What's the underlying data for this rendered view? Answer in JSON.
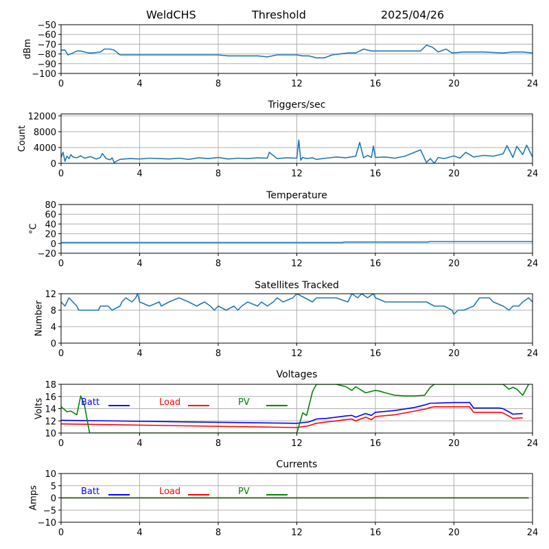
{
  "header": {
    "station": "WeldCHS",
    "mode": "Threshold",
    "date": "2025/04/26"
  },
  "colors": {
    "series_default": "#1f77b4",
    "batt": "#0000ff",
    "load": "#ff0000",
    "pv": "#008000",
    "grid": "#b0b0b0"
  },
  "chart_data": [
    {
      "type": "line",
      "title": "",
      "ylabel": "dBm",
      "xlim": [
        0,
        24
      ],
      "ylim": [
        -100,
        -50
      ],
      "xticks": [
        0,
        4,
        8,
        12,
        16,
        20,
        24
      ],
      "yticks": [
        -100,
        -90,
        -80,
        -70,
        -60,
        -50
      ],
      "grid": true,
      "series": [
        {
          "x": [
            0,
            0.2,
            0.35,
            0.6,
            0.8,
            1.0,
            1.4,
            1.6,
            2.0,
            2.2,
            2.5,
            2.7,
            3.0,
            4.0,
            5.0,
            6.0,
            7.0,
            8.0,
            8.5,
            9.0,
            10.0,
            10.5,
            11.0,
            12.0,
            12.3,
            12.6,
            13.0,
            13.4,
            13.8,
            14.2,
            14.6,
            15.0,
            15.4,
            15.8,
            16.5,
            17.5,
            18.3,
            18.6,
            18.9,
            19.2,
            19.6,
            19.9,
            20.5,
            21.5,
            22.5,
            23.0,
            23.5,
            24.0
          ],
          "values": [
            -76,
            -76,
            -81,
            -79,
            -77,
            -77,
            -79,
            -79,
            -78,
            -75,
            -75,
            -76,
            -81,
            -81,
            -81,
            -81,
            -81,
            -81,
            -82,
            -82,
            -82,
            -83,
            -81,
            -81,
            -82,
            -82,
            -84,
            -84,
            -81,
            -80,
            -79,
            -79,
            -75,
            -77,
            -77,
            -77,
            -77,
            -71,
            -73,
            -78,
            -75,
            -79,
            -78,
            -78,
            -79,
            -78,
            -78,
            -79
          ]
        }
      ]
    },
    {
      "type": "line",
      "title": "Triggers/sec",
      "ylabel": "Count",
      "xlim": [
        0,
        24
      ],
      "ylim": [
        0,
        12500
      ],
      "xticks": [
        0,
        4,
        8,
        12,
        16,
        20,
        24
      ],
      "yticks": [
        0,
        4000,
        8000,
        12000
      ],
      "grid": true,
      "series": [
        {
          "x": [
            0,
            0.1,
            0.2,
            0.3,
            0.4,
            0.5,
            0.6,
            0.8,
            1.0,
            1.2,
            1.5,
            1.8,
            2.0,
            2.1,
            2.3,
            2.5,
            2.6,
            2.7,
            3.0,
            3.5,
            4.0,
            4.5,
            5.0,
            5.5,
            6.0,
            6.5,
            7.0,
            7.5,
            8.0,
            8.5,
            9.0,
            9.5,
            10.0,
            10.5,
            10.6,
            11.0,
            11.5,
            12.0,
            12.1,
            12.2,
            12.3,
            12.5,
            12.8,
            13.0,
            13.5,
            14.0,
            14.5,
            15.0,
            15.2,
            15.4,
            15.6,
            15.8,
            15.9,
            16.0,
            16.5,
            17.0,
            17.5,
            18.3,
            18.6,
            18.8,
            19.0,
            19.2,
            19.5,
            20.0,
            20.3,
            20.6,
            21.0,
            21.5,
            22.0,
            22.5,
            22.7,
            23.0,
            23.2,
            23.5,
            23.7,
            24.0
          ],
          "values": [
            1500,
            2800,
            500,
            1800,
            1200,
            2200,
            1600,
            1400,
            1900,
            1300,
            1700,
            1100,
            1500,
            2500,
            1200,
            900,
            1400,
            200,
            1000,
            1200,
            1100,
            1300,
            1200,
            1100,
            1300,
            1000,
            1400,
            1200,
            1500,
            1100,
            1300,
            1200,
            1400,
            1300,
            2800,
            1200,
            1400,
            1300,
            5900,
            800,
            1500,
            1200,
            1400,
            1000,
            1300,
            1600,
            1400,
            1800,
            5300,
            1400,
            2000,
            1500,
            4400,
            1500,
            1600,
            1300,
            1800,
            3400,
            200,
            1200,
            0,
            1500,
            1200,
            1900,
            1300,
            2800,
            1600,
            2000,
            1800,
            2400,
            4500,
            1500,
            4300,
            2200,
            4600,
            1600
          ]
        }
      ]
    },
    {
      "type": "line",
      "title": "Temperature",
      "ylabel": "°C",
      "xlim": [
        0,
        24
      ],
      "ylim": [
        -20,
        80
      ],
      "xticks": [
        0,
        4,
        8,
        12,
        16,
        20,
        24
      ],
      "yticks": [
        -20,
        0,
        20,
        40,
        60,
        80
      ],
      "grid": true,
      "series": [
        {
          "x": [
            0,
            14.35,
            14.4,
            18.7,
            18.75,
            24.0
          ],
          "values": [
            2,
            2,
            3,
            3,
            4,
            4
          ]
        }
      ]
    },
    {
      "type": "line",
      "title": "Satellites Tracked",
      "ylabel": "Number",
      "xlim": [
        0,
        24
      ],
      "ylim": [
        0,
        12
      ],
      "xticks": [
        0,
        4,
        8,
        12,
        16,
        20,
        24
      ],
      "yticks": [
        0,
        4,
        8,
        12
      ],
      "grid": true,
      "series": [
        {
          "x": [
            0,
            0.2,
            0.4,
            0.6,
            0.8,
            0.9,
            1.5,
            1.9,
            2.0,
            2.4,
            2.6,
            3.0,
            3.1,
            3.3,
            3.6,
            3.8,
            3.9,
            4.0,
            4.5,
            5.0,
            5.1,
            5.5,
            6.0,
            6.5,
            6.9,
            7.3,
            7.6,
            7.8,
            8.0,
            8.4,
            8.8,
            9.0,
            9.2,
            9.5,
            10.0,
            10.2,
            10.5,
            10.8,
            11.0,
            11.3,
            11.8,
            12.0,
            12.4,
            12.8,
            13.0,
            13.5,
            14.0,
            14.6,
            14.8,
            15.1,
            15.3,
            15.6,
            15.9,
            16.0,
            16.5,
            17.0,
            17.5,
            18.0,
            18.6,
            19.0,
            19.5,
            19.9,
            20.0,
            20.2,
            20.5,
            21.0,
            21.3,
            21.8,
            22.0,
            22.5,
            22.8,
            23.0,
            23.3,
            23.5,
            23.8,
            24.0
          ],
          "values": [
            10,
            9,
            11,
            10,
            9,
            8,
            8,
            8,
            9,
            9,
            8,
            9,
            10,
            11,
            10,
            11,
            12,
            10,
            9,
            10,
            9,
            10,
            11,
            10,
            9,
            10,
            9,
            8,
            9,
            8,
            9,
            8,
            9,
            10,
            9,
            10,
            9,
            10,
            11,
            10,
            11,
            12,
            11,
            10,
            11,
            11,
            11,
            10,
            12,
            11,
            12,
            11,
            12,
            11,
            10,
            10,
            10,
            10,
            10,
            9,
            9,
            8,
            7,
            8,
            8,
            9,
            11,
            11,
            10,
            9,
            8,
            9,
            9,
            10,
            11,
            10
          ]
        }
      ]
    },
    {
      "type": "line",
      "title": "Voltages",
      "ylabel": "Volts",
      "xlim": [
        0,
        24
      ],
      "ylim": [
        10,
        18
      ],
      "xticks": [
        0,
        4,
        8,
        12,
        16,
        20,
        24
      ],
      "yticks": [
        10,
        12,
        14,
        16,
        18
      ],
      "grid": true,
      "legend": "top-left, inline",
      "series": [
        {
          "name": "Batt",
          "color": "#0000ff",
          "x": [
            0,
            12.0,
            12.6,
            13.0,
            13.5,
            14.0,
            14.5,
            14.8,
            15.0,
            15.5,
            15.8,
            16.0,
            17.0,
            18.0,
            18.5,
            18.8,
            19.0,
            20.0,
            20.8,
            21.0,
            22.0,
            22.3,
            22.5,
            23.0,
            23.5
          ],
          "values": [
            12.1,
            11.6,
            11.8,
            12.3,
            12.4,
            12.6,
            12.8,
            12.9,
            12.6,
            13.2,
            12.9,
            13.4,
            13.7,
            14.2,
            14.6,
            14.9,
            14.9,
            15.0,
            15.0,
            14.1,
            14.1,
            14.1,
            14.0,
            13.1,
            13.2
          ]
        },
        {
          "name": "Load",
          "color": "#ff0000",
          "x": [
            0,
            12.0,
            12.6,
            13.0,
            13.5,
            14.0,
            14.5,
            14.8,
            15.0,
            15.5,
            15.8,
            16.0,
            17.0,
            18.0,
            18.5,
            18.8,
            19.0,
            20.0,
            20.8,
            21.0,
            22.0,
            22.3,
            22.5,
            23.0,
            23.5
          ],
          "values": [
            11.5,
            10.9,
            11.2,
            11.6,
            11.8,
            12.0,
            12.2,
            12.3,
            12.0,
            12.6,
            12.2,
            12.7,
            13.0,
            13.6,
            13.9,
            14.2,
            14.3,
            14.3,
            14.3,
            13.4,
            13.4,
            13.4,
            13.3,
            12.4,
            12.5
          ]
        },
        {
          "name": "PV",
          "color": "#008000",
          "x": [
            0,
            0.3,
            0.5,
            0.8,
            1.0,
            1.2,
            1.45,
            12.0,
            12.3,
            12.5,
            12.8,
            13.0,
            14.0,
            14.5,
            14.8,
            15.0,
            15.5,
            16.0,
            16.2,
            16.5,
            17.0,
            17.5,
            18.0,
            18.5,
            18.8,
            19.0,
            22.5,
            22.8,
            23.0,
            23.2,
            23.5,
            23.8
          ],
          "values": [
            14.3,
            13.5,
            13.6,
            13.0,
            16.1,
            14.5,
            10.0,
            10.0,
            13.3,
            12.9,
            16.8,
            18.0,
            18.0,
            17.6,
            17.0,
            17.6,
            16.6,
            17.0,
            16.9,
            16.6,
            16.2,
            16.1,
            16.1,
            16.2,
            17.5,
            18.0,
            18.0,
            17.2,
            17.5,
            17.2,
            16.2,
            18.0
          ]
        }
      ]
    },
    {
      "type": "line",
      "title": "Currents",
      "ylabel": "Amps",
      "xlim": [
        0,
        24
      ],
      "ylim": [
        -10,
        10
      ],
      "xticks": [
        0,
        4,
        8,
        12,
        16,
        20,
        24
      ],
      "yticks": [
        -10,
        -5,
        0,
        5,
        10
      ],
      "grid": true,
      "legend": "top-left, inline",
      "series": [
        {
          "name": "Batt",
          "color": "#0000ff",
          "x": [
            0,
            23.8
          ],
          "values": [
            0,
            0
          ]
        },
        {
          "name": "Load",
          "color": "#ff0000",
          "x": [
            0,
            23.8
          ],
          "values": [
            0,
            0
          ]
        },
        {
          "name": "PV",
          "color": "#008000",
          "x": [
            0,
            23.8
          ],
          "values": [
            0,
            0
          ]
        }
      ]
    }
  ]
}
